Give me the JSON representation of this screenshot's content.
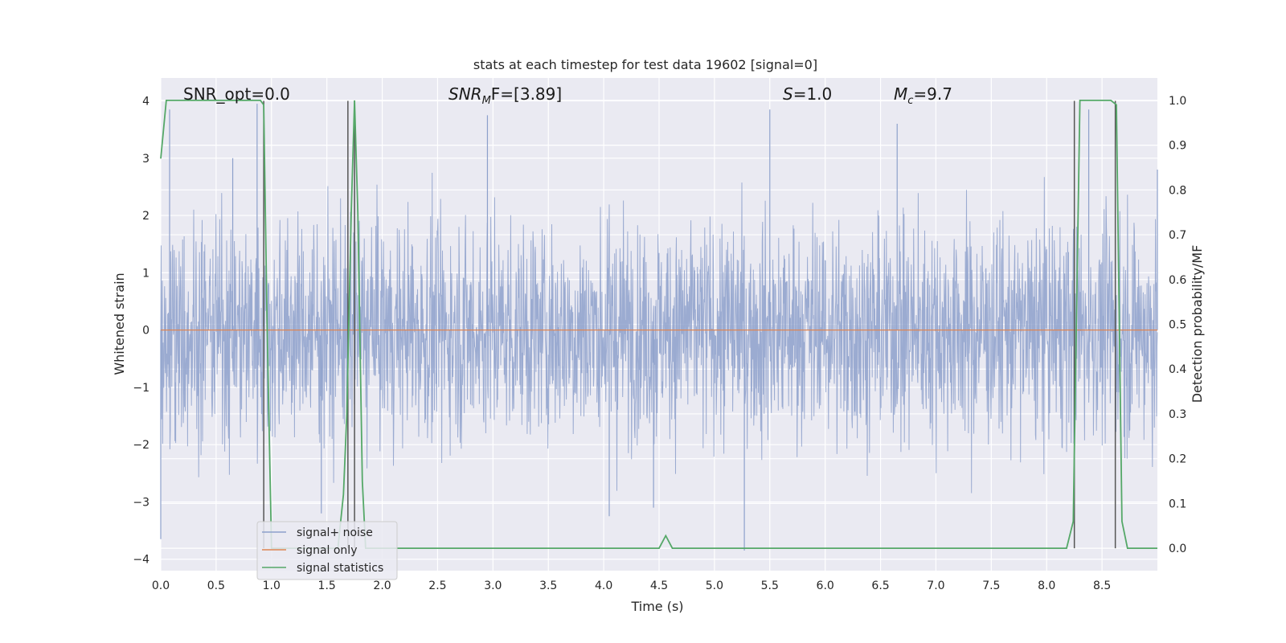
{
  "chart_data": {
    "type": "line",
    "title": "stats at each timestep for test data 19602 [signal=0]",
    "xlabel": "Time (s)",
    "ylabel": "Whitened strain",
    "ylabel_right": "Detection probability/MF",
    "xlim": [
      0.0,
      9.0
    ],
    "ylim": [
      -4.2,
      4.4
    ],
    "ylim_right": [
      -0.05,
      1.05
    ],
    "x_ticks": [
      "0.0",
      "0.5",
      "1.0",
      "1.5",
      "2.0",
      "2.5",
      "3.0",
      "3.5",
      "4.0",
      "4.5",
      "5.0",
      "5.5",
      "6.0",
      "6.5",
      "7.0",
      "7.5",
      "8.0",
      "8.5"
    ],
    "y_ticks": [
      "4",
      "3",
      "2",
      "1",
      "0",
      "−1",
      "−2",
      "−3",
      "−4"
    ],
    "y_ticks_right": [
      "1.0",
      "0.9",
      "0.8",
      "0.7",
      "0.6",
      "0.5",
      "0.4",
      "0.3",
      "0.2",
      "0.1",
      "0.0"
    ],
    "grid": true,
    "legend_placement": "lower-left",
    "series": [
      {
        "name": "signal+ noise",
        "color": "#8da0cb",
        "style": "dense noise, amplitude mostly within ±2, peaks near ±4",
        "peaks": [
          [
            0.08,
            3.85
          ],
          [
            0.65,
            3.0
          ],
          [
            0.87,
            3.95
          ],
          [
            1.75,
            3.85
          ],
          [
            2.95,
            3.75
          ],
          [
            5.5,
            3.85
          ],
          [
            6.65,
            3.6
          ],
          [
            8.38,
            3.85
          ],
          [
            9.0,
            2.8
          ],
          [
            4.05,
            -3.25
          ],
          [
            5.27,
            -3.85
          ],
          [
            4.45,
            -3.1
          ],
          [
            0.0,
            -3.65
          ],
          [
            1.45,
            -3.2
          ]
        ]
      },
      {
        "name": "signal only",
        "color": "#dd8452",
        "x": [
          0.0,
          9.0
        ],
        "y": [
          0.0,
          0.0
        ]
      },
      {
        "name": "signal statistics",
        "color": "#55a868",
        "axis": "right",
        "x": [
          0.0,
          0.05,
          0.1,
          0.2,
          0.3,
          0.4,
          0.5,
          0.6,
          0.7,
          0.8,
          0.9,
          0.93,
          0.96,
          1.0,
          1.05,
          1.1,
          1.15,
          1.2,
          1.25,
          1.3,
          1.35,
          1.4,
          1.45,
          1.5,
          1.55,
          1.6,
          1.65,
          1.68,
          1.72,
          1.75,
          1.78,
          1.82,
          1.85,
          1.9,
          2.0,
          2.5,
          3.0,
          3.5,
          4.0,
          4.5,
          4.56,
          4.62,
          5.0,
          5.5,
          6.0,
          6.5,
          7.0,
          7.5,
          8.0,
          8.18,
          8.24,
          8.3,
          8.35,
          8.4,
          8.5,
          8.58,
          8.63,
          8.68,
          8.73,
          8.8,
          9.0
        ],
        "y": [
          0.87,
          1.0,
          1.0,
          1.0,
          1.0,
          1.0,
          1.0,
          1.0,
          1.0,
          1.0,
          1.0,
          0.99,
          0.5,
          0.0,
          0.0,
          0.0,
          0.0,
          0.0,
          0.0,
          0.0,
          0.0,
          0.0,
          0.0,
          0.0,
          0.0,
          0.0,
          0.12,
          0.3,
          0.75,
          1.0,
          0.75,
          0.15,
          0.0,
          0.0,
          0.0,
          0.0,
          0.0,
          0.0,
          0.0,
          0.0,
          0.028,
          0.0,
          0.0,
          0.0,
          0.0,
          0.0,
          0.0,
          0.0,
          0.0,
          0.0,
          0.06,
          1.0,
          1.0,
          1.0,
          1.0,
          1.0,
          0.99,
          0.06,
          0.0,
          0.0,
          0.0
        ]
      }
    ],
    "vertical_lines": [
      0.93,
      1.69,
      1.75,
      8.25,
      8.62
    ],
    "annotations": [
      {
        "id": "snr-opt",
        "text": "SNR_opt=0.0"
      },
      {
        "id": "snr-mf",
        "main": "SNR",
        "sub": "M",
        "tail": "F=[3.89]"
      },
      {
        "id": "s",
        "main": "S",
        "tail": "=1.0"
      },
      {
        "id": "mc",
        "main": "M",
        "sub": "c",
        "tail": "=9.7"
      }
    ]
  }
}
